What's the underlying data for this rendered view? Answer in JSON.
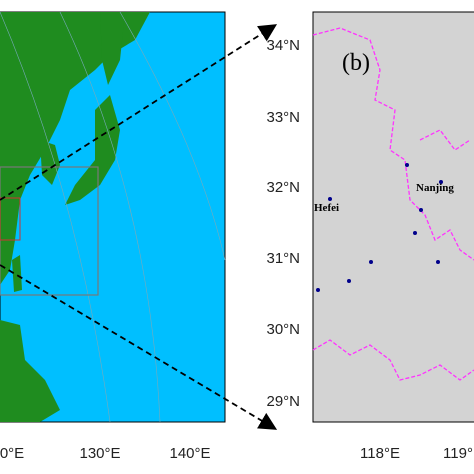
{
  "panel_a": {
    "x_labels": [
      "0°E",
      "130°E",
      "140°E"
    ]
  },
  "panel_b": {
    "label": "(b)",
    "y_labels": [
      "34°N",
      "33°N",
      "32°N",
      "31°N",
      "30°N",
      "29°N"
    ],
    "x_labels": [
      "118°E",
      "119°"
    ],
    "cities": [
      "Hefei",
      "Nanjing"
    ]
  }
}
